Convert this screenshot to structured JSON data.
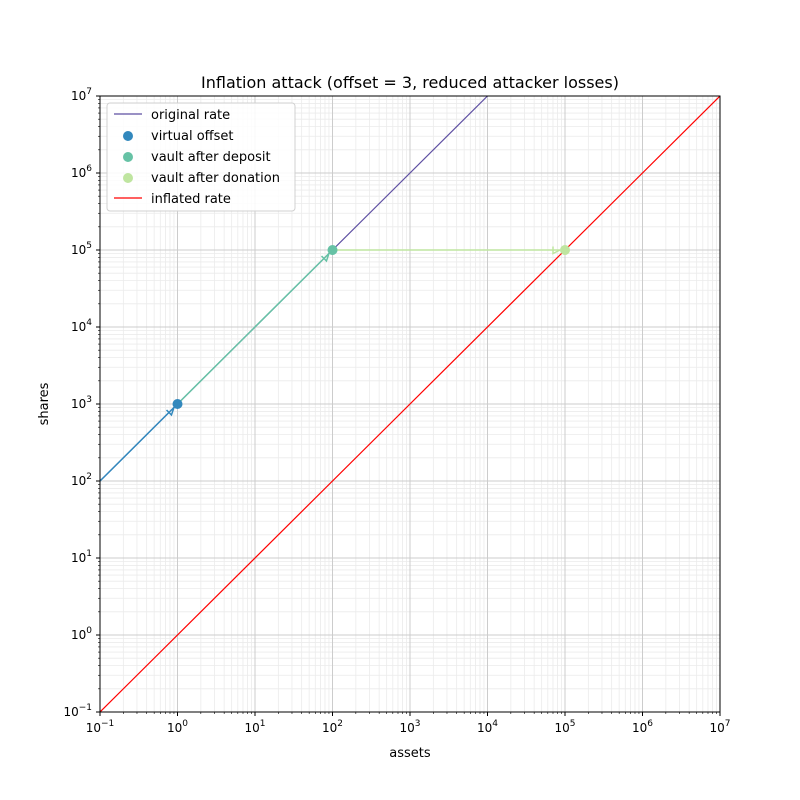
{
  "chart_data": {
    "type": "line",
    "title": "Inflation attack (offset = 3, reduced attacker losses)",
    "xlabel": "assets",
    "ylabel": "shares",
    "xscale": "log",
    "yscale": "log",
    "xlim": [
      0.1,
      10000000
    ],
    "ylim": [
      0.1,
      10000000
    ],
    "grid": "major and minor",
    "legend_position": "top-left",
    "x_ticks": [
      "10^-1",
      "10^0",
      "10^1",
      "10^2",
      "10^3",
      "10^4",
      "10^5",
      "10^6",
      "10^7"
    ],
    "y_ticks": [
      "10^-1",
      "10^0",
      "10^1",
      "10^2",
      "10^3",
      "10^4",
      "10^5",
      "10^6",
      "10^7"
    ],
    "series": [
      {
        "name": "original rate",
        "kind": "line",
        "color": "#5e4fa2",
        "x": [
          0.1,
          10000
        ],
        "y": [
          100,
          10000000
        ]
      },
      {
        "name": "virtual offset",
        "kind": "scatter",
        "color": "#3288bd",
        "x": [
          1
        ],
        "y": [
          1000
        ]
      },
      {
        "name": "vault after deposit",
        "kind": "scatter",
        "color": "#66c2a5",
        "x": [
          100
        ],
        "y": [
          100000
        ]
      },
      {
        "name": "vault after donation",
        "kind": "scatter",
        "color": "#bfe5a0",
        "x": [
          100000
        ],
        "y": [
          100000
        ]
      },
      {
        "name": "inflated rate",
        "kind": "line",
        "color": "#ff0000",
        "x": [
          0.1,
          10000000
        ],
        "y": [
          0.1,
          10000000
        ]
      }
    ],
    "arrows": [
      {
        "from": [
          0.1,
          100
        ],
        "to": [
          1,
          1000
        ],
        "color": "#3288bd"
      },
      {
        "from": [
          1,
          1000
        ],
        "to": [
          100,
          100000
        ],
        "color": "#66c2a5"
      },
      {
        "from": [
          100,
          100000
        ],
        "to": [
          100000,
          100000
        ],
        "color": "#bfe5a0"
      }
    ]
  }
}
